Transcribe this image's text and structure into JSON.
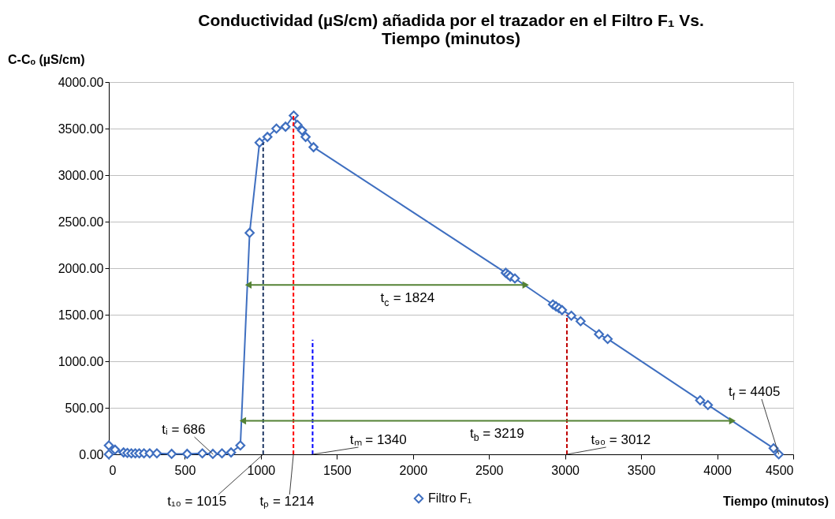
{
  "chart_data": {
    "type": "line",
    "title": [
      "Conductividad (µS/cm) añadida por el trazador en el Filtro F₁ Vs.",
      "Tiempo (minutos)"
    ],
    "xlabel": "Tiempo (minutos)",
    "ylabel": "C-Cₒ (µS/cm)",
    "xlim": [
      0,
      4500
    ],
    "xticks": [
      0,
      500,
      {
        "value": 1000,
        "label": "1000"
      },
      {
        "value": 1500,
        "label": "1500"
      },
      {
        "value": 2000,
        "label": "2000"
      },
      {
        "value": 2500,
        "label": "2500"
      },
      {
        "value": 3000,
        "label": "3000"
      },
      {
        "value": 3500,
        "label": "3500"
      },
      {
        "value": 4000,
        "label": "4000"
      },
      {
        "value": 4500,
        "label": "4500"
      }
    ],
    "ylim": [
      0,
      4000
    ],
    "yticks": [
      {
        "value": 0,
        "label": "0.00"
      },
      {
        "value": 500,
        "label": "500.00"
      },
      {
        "value": 1000,
        "label": "1000.00"
      },
      {
        "value": 1500,
        "label": "1500.00"
      },
      {
        "value": 2000,
        "label": "2000.00"
      },
      {
        "value": 2500,
        "label": "2500.00"
      },
      {
        "value": 3000,
        "label": "3000.00"
      },
      {
        "value": 3500,
        "label": "3500.00"
      },
      {
        "value": 4000,
        "label": "4000.00"
      }
    ],
    "grid": "y",
    "legend": "bottom",
    "series": [
      {
        "name": "Filtro F₁",
        "color": "#3f6fc0",
        "marker": "diamond",
        "line_style": "solid",
        "x": [
          0,
          0,
          41,
          97,
          122,
          148,
          174,
          200,
          231,
          269,
          316,
          413,
          515,
          615,
          684,
          744,
          804,
          865,
          926,
          991,
          1043,
          1102,
          1162,
          1216,
          1240,
          1271,
          1294,
          1346,
          2610,
          2625,
          2640,
          2670,
          2920,
          2940,
          2960,
          2980,
          3041,
          3102,
          3223,
          3280,
          3888,
          3939,
          4371,
          4405
        ],
        "values": [
          0,
          95,
          50,
          20,
          15,
          10,
          10,
          10,
          10,
          10,
          10,
          5,
          5,
          10,
          5,
          10,
          20,
          95,
          2380,
          3350,
          3410,
          3500,
          3520,
          3640,
          3540,
          3480,
          3410,
          3300,
          1950,
          1930,
          1910,
          1890,
          1610,
          1590,
          1570,
          1550,
          1490,
          1430,
          1290,
          1240,
          580,
          530,
          65,
          0
        ]
      },
      {
        "color": "#1f3864",
        "line_style": "dashed",
        "x": [
          1015,
          1015
        ],
        "values": [
          0,
          3350
        ]
      },
      {
        "color": "#ff0000",
        "line_style": "dashed",
        "x": [
          1214,
          1214
        ],
        "values": [
          0,
          3640
        ]
      },
      {
        "color": "#0000ff",
        "line_style": "dashed",
        "x": [
          1340,
          1340
        ],
        "values": [
          0,
          1230
        ]
      },
      {
        "color": "#c00000",
        "line_style": "dashed",
        "x": [
          3012,
          3012
        ],
        "values": [
          0,
          1500
        ]
      },
      {
        "color": "#548235",
        "line_style": "solid",
        "marker": "triangle",
        "x": [
          917,
          2741
        ],
        "values": [
          1820,
          1820
        ]
      },
      {
        "color": "#548235",
        "line_style": "solid",
        "marker": "triangle",
        "x": [
          881,
          4100
        ],
        "values": [
          360,
          360
        ]
      }
    ],
    "annotations": [
      {
        "text": "tᵢ = 686",
        "x": 686,
        "y": 0
      },
      {
        "text": "t₁₀ = 1015",
        "x": 1015,
        "y": 0
      },
      {
        "text": "tₚ = 1214",
        "x": 1214,
        "y": 0
      },
      {
        "text": "tₘ = 1340",
        "x": 1340,
        "y": 0
      },
      {
        "text": "t$_{c}$ = 1824",
        "x": 1829,
        "y": 1820
      },
      {
        "text": "t$_{b}$ = 3219",
        "x": 2490,
        "y": 360
      },
      {
        "text": "t₉₀ = 3012",
        "x": 3012,
        "y": 0
      },
      {
        "text": "t$_{f}$ = 4405",
        "x": 4405,
        "y": 0
      }
    ]
  }
}
